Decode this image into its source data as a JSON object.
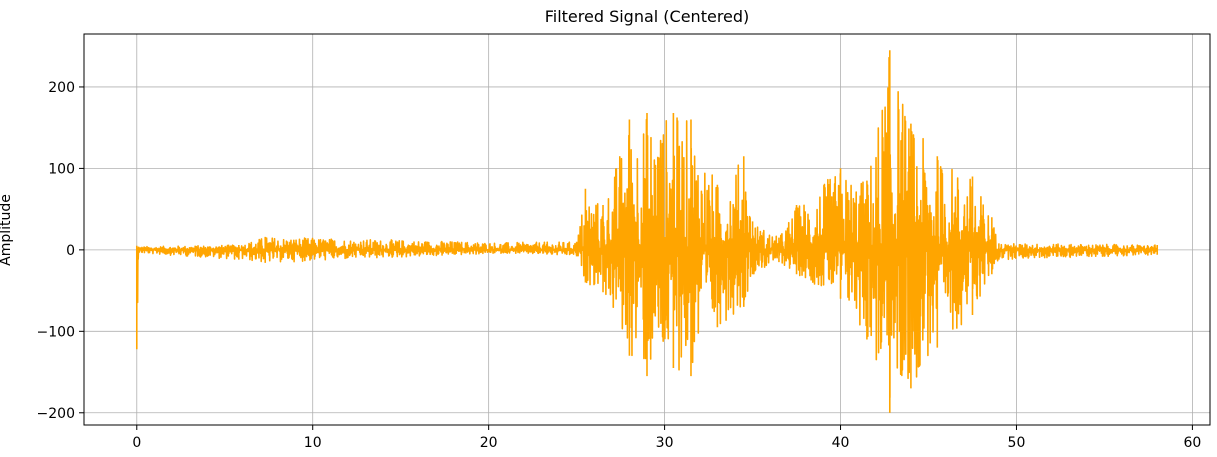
{
  "chart_data": {
    "type": "line",
    "title": "Filtered Signal (Centered)",
    "xlabel": "",
    "ylabel": "Amplitude",
    "xlim": [
      -3,
      61
    ],
    "ylim": [
      -215,
      265
    ],
    "xticks": [
      0,
      10,
      20,
      30,
      40,
      50,
      60
    ],
    "yticks": [
      -200,
      -100,
      0,
      100,
      200
    ],
    "ytick_labels": [
      "−200",
      "−100",
      "0",
      "100",
      "200"
    ],
    "grid": true,
    "legend": "none",
    "series": [
      {
        "color": "#ffa500",
        "x_range": [
          0,
          58
        ],
        "envelope": [
          {
            "x": 0.0,
            "upper": 5,
            "lower": -122
          },
          {
            "x": 0.1,
            "upper": 4,
            "lower": -4
          },
          {
            "x": 5.8,
            "upper": 6,
            "lower": -12
          },
          {
            "x": 7.3,
            "upper": 16,
            "lower": -16
          },
          {
            "x": 21.0,
            "upper": 9,
            "lower": -4
          },
          {
            "x": 25.0,
            "upper": 10,
            "lower": -8
          },
          {
            "x": 25.5,
            "upper": 75,
            "lower": -40
          },
          {
            "x": 26.5,
            "upper": 55,
            "lower": -52
          },
          {
            "x": 28.0,
            "upper": 160,
            "lower": -130
          },
          {
            "x": 29.0,
            "upper": 168,
            "lower": -155
          },
          {
            "x": 30.5,
            "upper": 168,
            "lower": -145
          },
          {
            "x": 31.5,
            "upper": 160,
            "lower": -155
          },
          {
            "x": 33.0,
            "upper": 80,
            "lower": -95
          },
          {
            "x": 34.5,
            "upper": 115,
            "lower": -70
          },
          {
            "x": 35.0,
            "upper": 35,
            "lower": -30
          },
          {
            "x": 36.5,
            "upper": 15,
            "lower": -15
          },
          {
            "x": 37.5,
            "upper": 55,
            "lower": -30
          },
          {
            "x": 40.0,
            "upper": 100,
            "lower": -60
          },
          {
            "x": 41.5,
            "upper": 85,
            "lower": -110
          },
          {
            "x": 42.8,
            "upper": 245,
            "lower": -200
          },
          {
            "x": 44.0,
            "upper": 155,
            "lower": -170
          },
          {
            "x": 45.5,
            "upper": 115,
            "lower": -120
          },
          {
            "x": 47.5,
            "upper": 90,
            "lower": -80
          },
          {
            "x": 48.6,
            "upper": 40,
            "lower": -30
          },
          {
            "x": 49.0,
            "upper": 8,
            "lower": -12
          },
          {
            "x": 58.0,
            "upper": 6,
            "lower": -6
          }
        ]
      }
    ]
  }
}
